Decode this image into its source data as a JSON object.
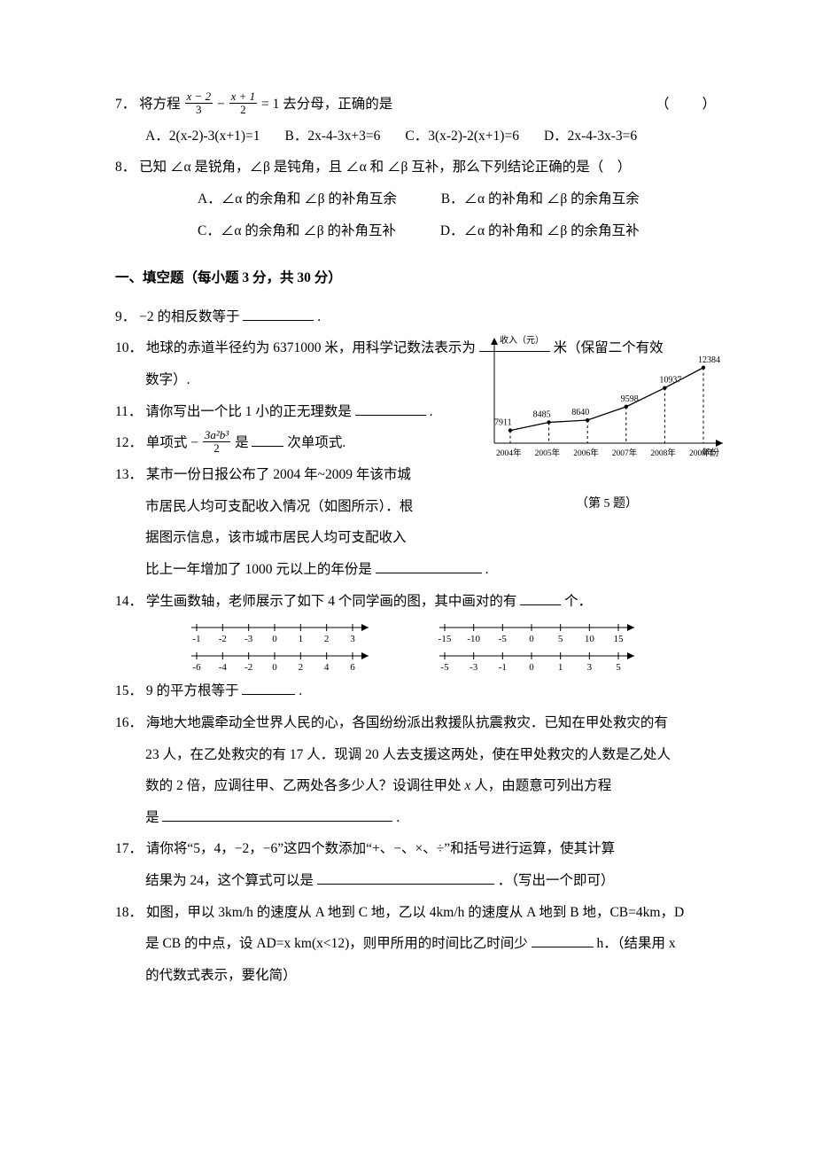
{
  "q7": {
    "num": "7．",
    "stem_pre": "将方程 ",
    "frac1_num": "x − 2",
    "frac1_den": "3",
    "minus": " − ",
    "frac2_num": "x + 1",
    "frac2_den": "2",
    "eq": " = 1 去分母，正确的是",
    "paren": "（　　）",
    "A": "A．2(x-2)-3(x+1)=1",
    "B": "B．2x-4-3x+3=6",
    "C": "C．3(x-2)-2(x+1)=6",
    "D": "D．2x-4-3x-3=6"
  },
  "q8": {
    "num": "8．",
    "stem": "已知 ∠α 是锐角，∠β 是钝角，且 ∠α 和 ∠β 互补，那么下列结论正确的是（　）",
    "A": "A．∠α 的余角和 ∠β 的补角互余",
    "B": "B．∠α 的补角和 ∠β 的余角互余",
    "C": "C．∠α 的余角和 ∠β 的补角互补",
    "D": "D．∠α 的补角和 ∠β 的余角互补"
  },
  "section": "一、填空题（每小题 3 分，共 30 分）",
  "q9": {
    "num": "9．",
    "a": "−2 的相反数等于",
    "b": "."
  },
  "q10": {
    "num": "10．",
    "a": "地球的赤道半径约为 6371000 米，用科学记数法表示为",
    "b": "米（保留二个有效",
    "c": "数字）."
  },
  "q11": {
    "num": "11．",
    "a": "请你写出一个比 1 小的正无理数是",
    "b": "."
  },
  "q12": {
    "num": "12．",
    "a": "单项式 −",
    "frac_num": "3a²b³",
    "frac_den": "2",
    "b": " 是",
    "c": "次单项式."
  },
  "q13": {
    "num": "13．",
    "a": "某市一份日报公布了 2004 年~2009 年该市城",
    "b": "市居民人均可支配收入情况（如图所示）．根",
    "c": "据图示信息，该市城市居民人均可支配收入",
    "d": "比上一年增加了 1000 元以上的年份是",
    "e": "."
  },
  "chart": {
    "ylabel": "收入（元）",
    "xlabel": "年份",
    "caption": "（第 5 题）",
    "years": [
      "2004年",
      "2005年",
      "2006年",
      "2007年",
      "2008年",
      "2009年"
    ],
    "values": [
      7911,
      8485,
      8640,
      9598,
      10937,
      12384
    ],
    "value_labels": [
      "7911",
      "8485",
      "8640",
      "9598",
      "10937",
      "12384"
    ],
    "line_color": "#000000",
    "bg": "#ffffff",
    "font_size": 10
  },
  "q14": {
    "num": "14．",
    "a": "学生画数轴，老师展示了如下 4 个同学画的图，其中画对的有",
    "b": "个．",
    "lines": {
      "tl": [
        "-1",
        "-2",
        "-3",
        "0",
        "1",
        "2",
        "3"
      ],
      "tr": [
        "-15",
        "-10",
        "-5",
        "0",
        "5",
        "10",
        "15"
      ],
      "bl": [
        "-6",
        "-4",
        "-2",
        "0",
        "2",
        "4",
        "6"
      ],
      "br": [
        "-5",
        "-3",
        "-1",
        "0",
        "1",
        "3",
        "5"
      ]
    }
  },
  "q15": {
    "num": "15．",
    "a": "9 的平方根等于",
    "b": "."
  },
  "q16": {
    "num": "16．",
    "a": "海地大地震牵动全世界人民的心，各国纷纷派出救援队抗震救灾．已知在甲处救灾的有",
    "b": "23 人，在乙处救灾的有 17 人．现调 20 人去支援这两处，使在甲处救灾的人数是乙处人",
    "c": "数的 2 倍，应调往甲、乙两处各多少人？设调往甲处 ",
    "c_x": "x",
    "c2": " 人，由题意可列出方程",
    "d": "是",
    "e": "."
  },
  "q17": {
    "num": "17．",
    "a": "请你将“5，4，−2，−6”这四个数添加“+、−、×、÷”和括号进行运算，使其计算",
    "b": "结果为 24，这个算式可以是",
    "c": "．（写出一个即可）"
  },
  "q18": {
    "num": "18．",
    "a": "如图，甲以 3km/h 的速度从 A 地到 C 地，乙以 4km/h 的速度从 A 地到 B 地，CB=4km，D",
    "b": "是 CB 的中点，设 AD=x km(x<12)，则甲所用的时间比乙时间少",
    "c": "h．（结果用 x",
    "d": "的代数式表示，要化简）"
  }
}
